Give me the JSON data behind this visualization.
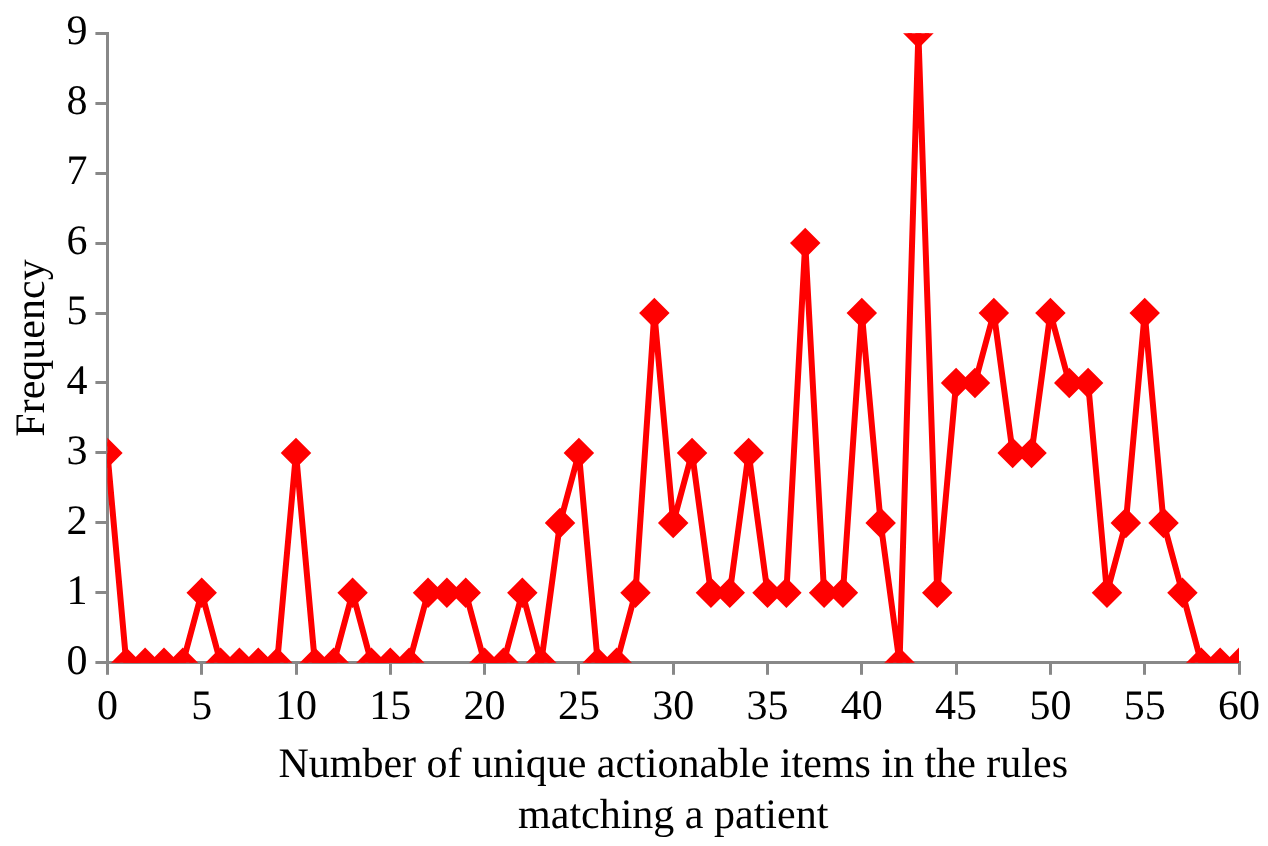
{
  "chart_data": {
    "type": "line",
    "xlabel": "Number of unique actionable items in the rules matching a patient",
    "ylabel": "Frequency",
    "x": [
      0,
      1,
      2,
      3,
      4,
      5,
      6,
      7,
      8,
      9,
      10,
      11,
      12,
      13,
      14,
      15,
      16,
      17,
      18,
      19,
      20,
      21,
      22,
      23,
      24,
      25,
      26,
      27,
      28,
      29,
      30,
      31,
      32,
      33,
      34,
      35,
      36,
      37,
      38,
      39,
      40,
      41,
      42,
      43,
      44,
      45,
      46,
      47,
      48,
      49,
      50,
      51,
      52,
      53,
      54,
      55,
      56,
      57,
      58,
      59,
      60
    ],
    "series": [
      {
        "color": "#ff0000",
        "values": [
          3,
          0,
          0,
          0,
          0,
          1,
          0,
          0,
          0,
          0,
          3,
          0,
          0,
          1,
          0,
          0,
          0,
          1,
          1,
          1,
          0,
          0,
          1,
          0,
          2,
          3,
          0,
          0,
          1,
          5,
          2,
          3,
          1,
          1,
          3,
          1,
          1,
          6,
          1,
          1,
          5,
          2,
          0,
          9,
          1,
          4,
          4,
          5,
          3,
          3,
          5,
          4,
          4,
          1,
          2,
          5,
          2,
          1,
          0,
          0,
          0
        ]
      }
    ],
    "xlim": [
      0,
      60
    ],
    "xticks": [
      0,
      5,
      10,
      15,
      20,
      25,
      30,
      35,
      40,
      45,
      50,
      55,
      60
    ],
    "ylim": [
      0,
      9
    ],
    "yticks": [
      0,
      1,
      2,
      3,
      4,
      5,
      6,
      7,
      8,
      9
    ],
    "grid": false,
    "legend": false,
    "marker": "diamond",
    "line_style": "solid"
  }
}
